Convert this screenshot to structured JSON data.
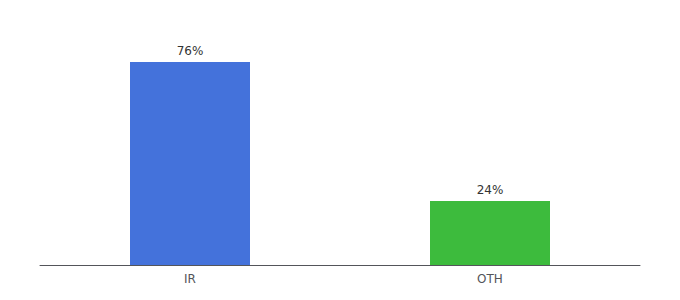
{
  "chart_data": {
    "type": "bar",
    "categories": [
      "IR",
      "OTH"
    ],
    "values": [
      76,
      24
    ],
    "value_labels": [
      "76%",
      "24%"
    ],
    "colors": [
      "#4472db",
      "#3dbb3d"
    ],
    "ylim": [
      0,
      88
    ],
    "data_labels": true,
    "tick_labels": "x",
    "grid": false
  }
}
